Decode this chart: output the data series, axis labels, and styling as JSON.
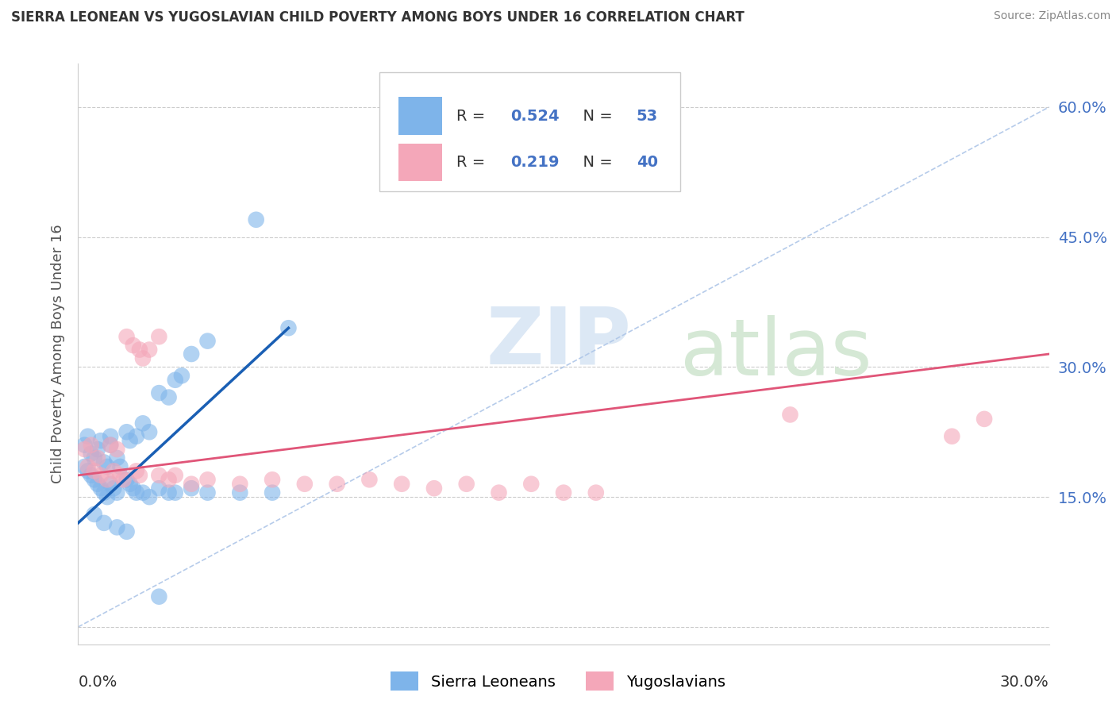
{
  "title": "SIERRA LEONEAN VS YUGOSLAVIAN CHILD POVERTY AMONG BOYS UNDER 16 CORRELATION CHART",
  "source": "Source: ZipAtlas.com",
  "ylabel": "Child Poverty Among Boys Under 16",
  "xlim": [
    0.0,
    0.3
  ],
  "ylim": [
    -0.02,
    0.65
  ],
  "ytick_positions": [
    0.0,
    0.15,
    0.3,
    0.45,
    0.6
  ],
  "ytick_labels": [
    "",
    "15.0%",
    "30.0%",
    "45.0%",
    "60.0%"
  ],
  "r_sierra": 0.524,
  "n_sierra": 53,
  "r_yugoslav": 0.219,
  "n_yugoslav": 40,
  "sierra_color": "#7eb4ea",
  "yugoslav_color": "#f4a7b9",
  "sierra_line_color": "#1a5fb4",
  "yugoslav_line_color": "#e05578",
  "dashed_line_color": "#aec6e8",
  "watermark_zip_color": "#dce8f5",
  "watermark_atlas_color": "#d5e8d5",
  "sierra_line_x": [
    0.0,
    0.065
  ],
  "sierra_line_y": [
    0.12,
    0.345
  ],
  "yugoslav_line_x": [
    0.0,
    0.3
  ],
  "yugoslav_line_y": [
    0.175,
    0.315
  ],
  "dashed_line_x": [
    0.0,
    0.3
  ],
  "dashed_line_y": [
    0.0,
    0.6
  ],
  "sierra_points": [
    [
      0.002,
      0.21
    ],
    [
      0.003,
      0.22
    ],
    [
      0.004,
      0.2
    ],
    [
      0.005,
      0.195
    ],
    [
      0.006,
      0.205
    ],
    [
      0.007,
      0.215
    ],
    [
      0.008,
      0.19
    ],
    [
      0.009,
      0.185
    ],
    [
      0.01,
      0.22
    ],
    [
      0.01,
      0.21
    ],
    [
      0.012,
      0.195
    ],
    [
      0.013,
      0.185
    ],
    [
      0.015,
      0.225
    ],
    [
      0.016,
      0.215
    ],
    [
      0.018,
      0.22
    ],
    [
      0.02,
      0.235
    ],
    [
      0.022,
      0.225
    ],
    [
      0.025,
      0.27
    ],
    [
      0.028,
      0.265
    ],
    [
      0.03,
      0.285
    ],
    [
      0.032,
      0.29
    ],
    [
      0.035,
      0.315
    ],
    [
      0.04,
      0.33
    ],
    [
      0.055,
      0.47
    ],
    [
      0.065,
      0.345
    ],
    [
      0.002,
      0.185
    ],
    [
      0.003,
      0.18
    ],
    [
      0.004,
      0.175
    ],
    [
      0.005,
      0.17
    ],
    [
      0.006,
      0.165
    ],
    [
      0.007,
      0.16
    ],
    [
      0.008,
      0.155
    ],
    [
      0.009,
      0.15
    ],
    [
      0.01,
      0.165
    ],
    [
      0.011,
      0.16
    ],
    [
      0.012,
      0.155
    ],
    [
      0.015,
      0.17
    ],
    [
      0.016,
      0.165
    ],
    [
      0.017,
      0.16
    ],
    [
      0.018,
      0.155
    ],
    [
      0.02,
      0.155
    ],
    [
      0.022,
      0.15
    ],
    [
      0.025,
      0.16
    ],
    [
      0.028,
      0.155
    ],
    [
      0.03,
      0.155
    ],
    [
      0.035,
      0.16
    ],
    [
      0.04,
      0.155
    ],
    [
      0.05,
      0.155
    ],
    [
      0.06,
      0.155
    ],
    [
      0.005,
      0.13
    ],
    [
      0.008,
      0.12
    ],
    [
      0.012,
      0.115
    ],
    [
      0.015,
      0.11
    ],
    [
      0.025,
      0.035
    ]
  ],
  "yugoslav_points": [
    [
      0.002,
      0.205
    ],
    [
      0.004,
      0.21
    ],
    [
      0.006,
      0.195
    ],
    [
      0.01,
      0.21
    ],
    [
      0.012,
      0.205
    ],
    [
      0.015,
      0.335
    ],
    [
      0.017,
      0.325
    ],
    [
      0.019,
      0.32
    ],
    [
      0.02,
      0.31
    ],
    [
      0.022,
      0.32
    ],
    [
      0.025,
      0.335
    ],
    [
      0.003,
      0.185
    ],
    [
      0.005,
      0.18
    ],
    [
      0.007,
      0.175
    ],
    [
      0.009,
      0.17
    ],
    [
      0.011,
      0.18
    ],
    [
      0.013,
      0.175
    ],
    [
      0.014,
      0.17
    ],
    [
      0.018,
      0.18
    ],
    [
      0.019,
      0.175
    ],
    [
      0.025,
      0.175
    ],
    [
      0.028,
      0.17
    ],
    [
      0.03,
      0.175
    ],
    [
      0.035,
      0.165
    ],
    [
      0.04,
      0.17
    ],
    [
      0.05,
      0.165
    ],
    [
      0.06,
      0.17
    ],
    [
      0.07,
      0.165
    ],
    [
      0.08,
      0.165
    ],
    [
      0.09,
      0.17
    ],
    [
      0.1,
      0.165
    ],
    [
      0.11,
      0.16
    ],
    [
      0.12,
      0.165
    ],
    [
      0.13,
      0.155
    ],
    [
      0.14,
      0.165
    ],
    [
      0.15,
      0.155
    ],
    [
      0.16,
      0.155
    ],
    [
      0.22,
      0.245
    ],
    [
      0.27,
      0.22
    ],
    [
      0.28,
      0.24
    ]
  ]
}
